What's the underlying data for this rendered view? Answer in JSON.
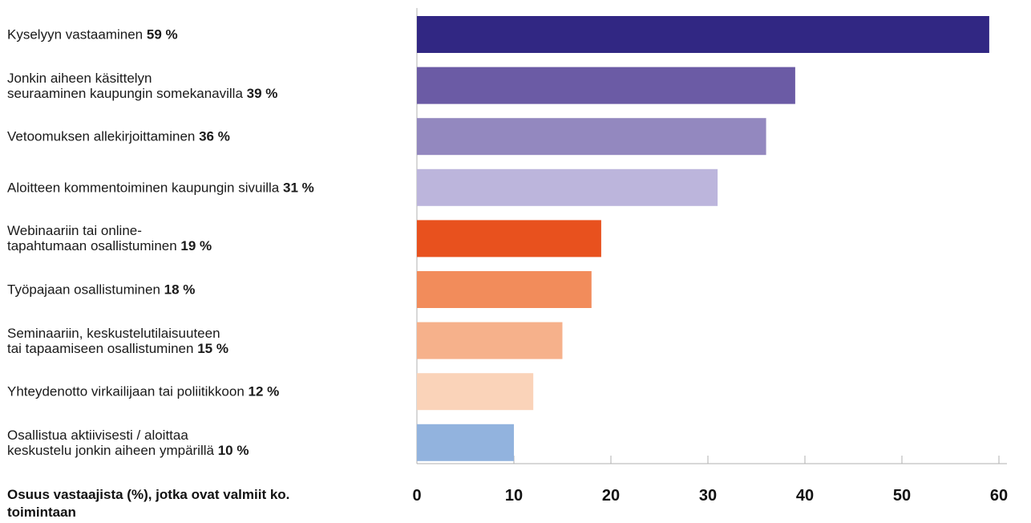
{
  "chart_data": {
    "type": "bar",
    "orientation": "horizontal",
    "categories": [
      [
        "Kyselyyn vastaaminen"
      ],
      [
        "Jonkin aiheen käsittelyn",
        "seuraaminen kaupungin somekanavilla"
      ],
      [
        "Vetoomuksen allekirjoittaminen"
      ],
      [
        "Aloitteen kommentoiminen kaupungin sivuilla"
      ],
      [
        "Webinaariin tai online-",
        "tapahtumaan osallistuminen"
      ],
      [
        "Työpajaan osallistuminen"
      ],
      [
        "Seminaariin, keskustelutilaisuuteen",
        "tai tapaamiseen osallistuminen"
      ],
      [
        "Yhteydenotto virkailijaan tai poliitikkoon"
      ],
      [
        "Osallistua aktiivisesti / aloittaa",
        "keskustelu jonkin aiheen ympärillä"
      ]
    ],
    "values": [
      59,
      39,
      36,
      31,
      19,
      18,
      15,
      12,
      10
    ],
    "value_labels": [
      "59 %",
      "39 %",
      "36 %",
      "31 %",
      "19 %",
      "18 %",
      "15 %",
      "12 %",
      "10 %"
    ],
    "colors": [
      "#312783",
      "#6b5ba5",
      "#9388bf",
      "#bcb5dc",
      "#e8511e",
      "#f28c5b",
      "#f6b18b",
      "#fad3b9",
      "#92b3de"
    ],
    "xticks": [
      0,
      10,
      20,
      30,
      40,
      50,
      60
    ],
    "xlim": [
      0,
      60
    ],
    "xlabel": "Osuus vastaajista (%), jotka ovat valmiit ko. toimintaan",
    "grid": false
  }
}
